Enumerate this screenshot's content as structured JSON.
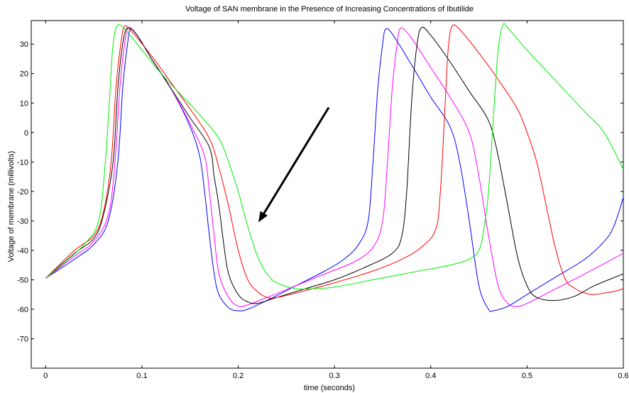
{
  "chart_data": {
    "type": "line",
    "title": "Voltage of SAN membrane in the Presence of Increasing Concentrations of Ibutilide",
    "xlabel": "time (seconds)",
    "ylabel": "Voltage of membrane (millivolts)",
    "xlim": [
      -0.015,
      0.6
    ],
    "ylim": [
      -80,
      38
    ],
    "xticks": [
      0,
      0.1,
      0.2,
      0.3,
      0.4,
      0.5,
      0.6
    ],
    "xtick_labels": [
      "0",
      "0.1",
      "0.2",
      "0.3",
      "0.4",
      "0.5",
      "0.6"
    ],
    "yticks": [
      30,
      20,
      10,
      0,
      -10,
      -20,
      -30,
      -40,
      -50,
      -60,
      -70
    ],
    "ytick_labels": [
      "30",
      "20",
      "10",
      "0",
      "-10",
      "-20",
      "-30",
      "-40",
      "-50",
      "-60",
      "-70"
    ],
    "grid": false,
    "series": [
      {
        "color": "#0000ff",
        "points": [
          [
            0,
            -49.5
          ],
          [
            0.03,
            -43
          ],
          [
            0.05,
            -38
          ],
          [
            0.065,
            -30
          ],
          [
            0.075,
            -10
          ],
          [
            0.08,
            15
          ],
          [
            0.085,
            30
          ],
          [
            0.088,
            35
          ],
          [
            0.095,
            33
          ],
          [
            0.11,
            25
          ],
          [
            0.13,
            15
          ],
          [
            0.15,
            2
          ],
          [
            0.16,
            -8
          ],
          [
            0.165,
            -20
          ],
          [
            0.17,
            -35
          ],
          [
            0.175,
            -48
          ],
          [
            0.18,
            -55
          ],
          [
            0.19,
            -59.5
          ],
          [
            0.2,
            -60.5
          ],
          [
            0.21,
            -60
          ],
          [
            0.23,
            -57
          ],
          [
            0.26,
            -52
          ],
          [
            0.29,
            -47
          ],
          [
            0.31,
            -43
          ],
          [
            0.325,
            -38
          ],
          [
            0.335,
            -30
          ],
          [
            0.34,
            -10
          ],
          [
            0.345,
            15
          ],
          [
            0.35,
            30
          ],
          [
            0.353,
            35
          ],
          [
            0.36,
            33.5
          ],
          [
            0.38,
            23
          ],
          [
            0.4,
            12
          ],
          [
            0.42,
            2
          ],
          [
            0.43,
            -10
          ],
          [
            0.44,
            -30
          ],
          [
            0.45,
            -52
          ],
          [
            0.46,
            -60
          ],
          [
            0.465,
            -60.5
          ],
          [
            0.48,
            -59
          ],
          [
            0.5,
            -55
          ],
          [
            0.53,
            -49
          ],
          [
            0.56,
            -43
          ],
          [
            0.58,
            -37
          ],
          [
            0.59,
            -32
          ],
          [
            0.6,
            -22
          ]
        ]
      },
      {
        "color": "#ff00ff",
        "points": [
          [
            0,
            -49.5
          ],
          [
            0.03,
            -42
          ],
          [
            0.05,
            -37
          ],
          [
            0.065,
            -28
          ],
          [
            0.072,
            -10
          ],
          [
            0.077,
            15
          ],
          [
            0.082,
            30
          ],
          [
            0.086,
            35.5
          ],
          [
            0.095,
            33
          ],
          [
            0.11,
            25
          ],
          [
            0.13,
            15
          ],
          [
            0.15,
            3
          ],
          [
            0.165,
            -8
          ],
          [
            0.17,
            -20
          ],
          [
            0.175,
            -35
          ],
          [
            0.18,
            -48
          ],
          [
            0.19,
            -56
          ],
          [
            0.2,
            -59
          ],
          [
            0.21,
            -58.5
          ],
          [
            0.23,
            -56
          ],
          [
            0.26,
            -52
          ],
          [
            0.29,
            -48
          ],
          [
            0.32,
            -44
          ],
          [
            0.34,
            -39
          ],
          [
            0.35,
            -30
          ],
          [
            0.355,
            -10
          ],
          [
            0.36,
            15
          ],
          [
            0.365,
            30
          ],
          [
            0.369,
            35.5
          ],
          [
            0.38,
            32
          ],
          [
            0.4,
            22
          ],
          [
            0.42,
            12
          ],
          [
            0.44,
            0
          ],
          [
            0.45,
            -15
          ],
          [
            0.46,
            -35
          ],
          [
            0.47,
            -52
          ],
          [
            0.48,
            -58
          ],
          [
            0.49,
            -59
          ],
          [
            0.5,
            -58
          ],
          [
            0.53,
            -53
          ],
          [
            0.56,
            -48
          ],
          [
            0.6,
            -41
          ]
        ]
      },
      {
        "color": "#000000",
        "points": [
          [
            0,
            -49.5
          ],
          [
            0.03,
            -41
          ],
          [
            0.05,
            -36
          ],
          [
            0.06,
            -28
          ],
          [
            0.07,
            -10
          ],
          [
            0.075,
            15
          ],
          [
            0.08,
            30
          ],
          [
            0.085,
            35.5
          ],
          [
            0.095,
            33
          ],
          [
            0.11,
            25
          ],
          [
            0.13,
            15
          ],
          [
            0.15,
            5
          ],
          [
            0.17,
            -5
          ],
          [
            0.175,
            -15
          ],
          [
            0.18,
            -25
          ],
          [
            0.185,
            -38
          ],
          [
            0.19,
            -48
          ],
          [
            0.2,
            -55
          ],
          [
            0.21,
            -57.5
          ],
          [
            0.22,
            -58
          ],
          [
            0.24,
            -56
          ],
          [
            0.27,
            -53
          ],
          [
            0.3,
            -50
          ],
          [
            0.33,
            -46
          ],
          [
            0.36,
            -41
          ],
          [
            0.37,
            -35
          ],
          [
            0.375,
            -20
          ],
          [
            0.38,
            10
          ],
          [
            0.385,
            28
          ],
          [
            0.39,
            35.5
          ],
          [
            0.4,
            33
          ],
          [
            0.42,
            24
          ],
          [
            0.44,
            14
          ],
          [
            0.46,
            4
          ],
          [
            0.47,
            -8
          ],
          [
            0.48,
            -25
          ],
          [
            0.49,
            -42
          ],
          [
            0.5,
            -52
          ],
          [
            0.51,
            -56
          ],
          [
            0.53,
            -57
          ],
          [
            0.55,
            -55.5
          ],
          [
            0.57,
            -52
          ],
          [
            0.6,
            -48
          ]
        ]
      },
      {
        "color": "#ff0000",
        "points": [
          [
            0,
            -49.5
          ],
          [
            0.03,
            -40
          ],
          [
            0.05,
            -35
          ],
          [
            0.06,
            -27
          ],
          [
            0.068,
            -10
          ],
          [
            0.073,
            15
          ],
          [
            0.078,
            30
          ],
          [
            0.082,
            36
          ],
          [
            0.09,
            34
          ],
          [
            0.11,
            26
          ],
          [
            0.13,
            17
          ],
          [
            0.15,
            8
          ],
          [
            0.17,
            -2
          ],
          [
            0.18,
            -12
          ],
          [
            0.19,
            -25
          ],
          [
            0.2,
            -40
          ],
          [
            0.21,
            -50
          ],
          [
            0.22,
            -54
          ],
          [
            0.23,
            -56
          ],
          [
            0.24,
            -56
          ],
          [
            0.26,
            -54.5
          ],
          [
            0.3,
            -51
          ],
          [
            0.34,
            -47
          ],
          [
            0.37,
            -43
          ],
          [
            0.39,
            -39
          ],
          [
            0.405,
            -33
          ],
          [
            0.41,
            -20
          ],
          [
            0.415,
            10
          ],
          [
            0.418,
            28
          ],
          [
            0.422,
            36
          ],
          [
            0.43,
            35
          ],
          [
            0.45,
            27
          ],
          [
            0.47,
            18
          ],
          [
            0.49,
            8
          ],
          [
            0.5,
            0
          ],
          [
            0.51,
            -10
          ],
          [
            0.52,
            -25
          ],
          [
            0.53,
            -40
          ],
          [
            0.54,
            -50
          ],
          [
            0.55,
            -53
          ],
          [
            0.56,
            -54.5
          ],
          [
            0.57,
            -55
          ],
          [
            0.58,
            -54.5
          ],
          [
            0.59,
            -54
          ],
          [
            0.6,
            -53
          ]
        ]
      },
      {
        "color": "#00ee00",
        "points": [
          [
            0,
            -49.5
          ],
          [
            0.02,
            -44
          ],
          [
            0.04,
            -38
          ],
          [
            0.055,
            -30
          ],
          [
            0.062,
            -10
          ],
          [
            0.067,
            15
          ],
          [
            0.07,
            30
          ],
          [
            0.075,
            36.5
          ],
          [
            0.085,
            34
          ],
          [
            0.1,
            28
          ],
          [
            0.12,
            20
          ],
          [
            0.14,
            13
          ],
          [
            0.16,
            6
          ],
          [
            0.18,
            -2
          ],
          [
            0.19,
            -10
          ],
          [
            0.2,
            -20
          ],
          [
            0.21,
            -32
          ],
          [
            0.22,
            -42
          ],
          [
            0.23,
            -48
          ],
          [
            0.24,
            -51
          ],
          [
            0.26,
            -53
          ],
          [
            0.28,
            -53
          ],
          [
            0.3,
            -52.5
          ],
          [
            0.34,
            -50
          ],
          [
            0.38,
            -47.5
          ],
          [
            0.42,
            -45
          ],
          [
            0.44,
            -43
          ],
          [
            0.45,
            -40
          ],
          [
            0.455,
            -33
          ],
          [
            0.46,
            -20
          ],
          [
            0.465,
            5
          ],
          [
            0.47,
            28
          ],
          [
            0.475,
            36.5
          ],
          [
            0.48,
            35.5
          ],
          [
            0.5,
            28
          ],
          [
            0.52,
            21
          ],
          [
            0.54,
            14
          ],
          [
            0.56,
            7
          ],
          [
            0.58,
            0
          ],
          [
            0.6,
            -12.5
          ]
        ]
      }
    ],
    "annotations": [
      {
        "type": "arrow",
        "from": [
          0.294,
          8.5
        ],
        "to": [
          0.221,
          -30.5
        ],
        "color": "#000000"
      }
    ]
  }
}
